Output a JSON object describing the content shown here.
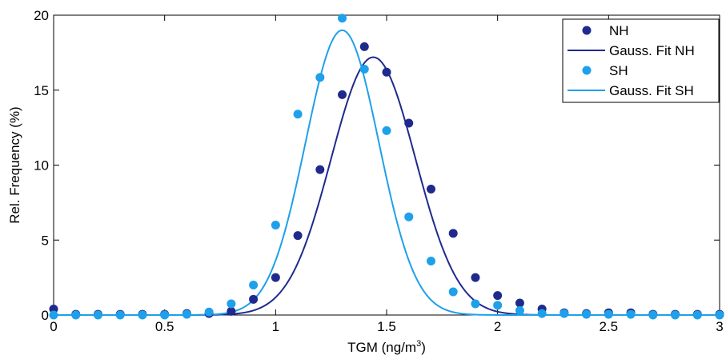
{
  "chart_data": {
    "type": "scatter",
    "xlabel": "TGM (ng/m",
    "xlabel_sup": "3",
    "xlabel_end": ")",
    "ylabel": "Rel. Frequency (%)",
    "xlim": [
      0,
      3
    ],
    "ylim": [
      0,
      20
    ],
    "xticks": [
      0,
      0.5,
      1,
      1.5,
      2,
      2.5,
      3
    ],
    "xtick_labels": [
      "0",
      "0.5",
      "1",
      "1.5",
      "2",
      "2.5",
      "3"
    ],
    "yticks": [
      0,
      5,
      10,
      15,
      20
    ],
    "ytick_labels": [
      "0",
      "5",
      "10",
      "15",
      "20"
    ],
    "grid": false,
    "legend_position": "top-right",
    "series": [
      {
        "name": "NH",
        "kind": "points",
        "color": "#1f2a8c",
        "x": [
          0,
          0.1,
          0.2,
          0.3,
          0.4,
          0.5,
          0.6,
          0.7,
          0.8,
          0.9,
          1.0,
          1.1,
          1.2,
          1.3,
          1.4,
          1.5,
          1.6,
          1.7,
          1.8,
          1.9,
          2.0,
          2.1,
          2.2,
          2.3,
          2.4,
          2.5,
          2.6,
          2.7,
          2.8,
          2.9,
          3.0
        ],
        "y": [
          0.4,
          0.05,
          0.05,
          0.05,
          0.05,
          0.05,
          0.1,
          0.1,
          0.25,
          1.05,
          2.5,
          5.3,
          9.7,
          14.7,
          17.9,
          16.2,
          12.8,
          8.4,
          5.45,
          2.5,
          1.3,
          0.8,
          0.4,
          0.15,
          0.1,
          0.15,
          0.15,
          0.05,
          0.05,
          0.05,
          0.05
        ]
      },
      {
        "name": "Gauss. Fit NH",
        "kind": "line",
        "color": "#1f2a8c",
        "amplitude": 17.2,
        "mean": 1.44,
        "sigma": 0.19
      },
      {
        "name": "SH",
        "kind": "points",
        "color": "#1ea0ea",
        "x": [
          0,
          0.1,
          0.2,
          0.3,
          0.4,
          0.5,
          0.6,
          0.7,
          0.8,
          0.9,
          1.0,
          1.1,
          1.2,
          1.3,
          1.4,
          1.5,
          1.6,
          1.7,
          1.8,
          1.9,
          2.0,
          2.1,
          2.2,
          2.3,
          2.4,
          2.5,
          2.6,
          2.7,
          2.8,
          2.9,
          3.0
        ],
        "y": [
          0.0,
          0.0,
          0.0,
          0.0,
          0.0,
          0.0,
          0.05,
          0.2,
          0.75,
          2.0,
          6.0,
          13.4,
          15.85,
          19.8,
          16.4,
          12.3,
          6.55,
          3.6,
          1.55,
          0.75,
          0.65,
          0.3,
          0.1,
          0.1,
          0.05,
          0.05,
          0.05,
          0.0,
          0.0,
          0.0,
          0.0
        ]
      },
      {
        "name": "Gauss. Fit SH",
        "kind": "line",
        "color": "#1ea0ea",
        "amplitude": 19.0,
        "mean": 1.3,
        "sigma": 0.165
      }
    ]
  }
}
